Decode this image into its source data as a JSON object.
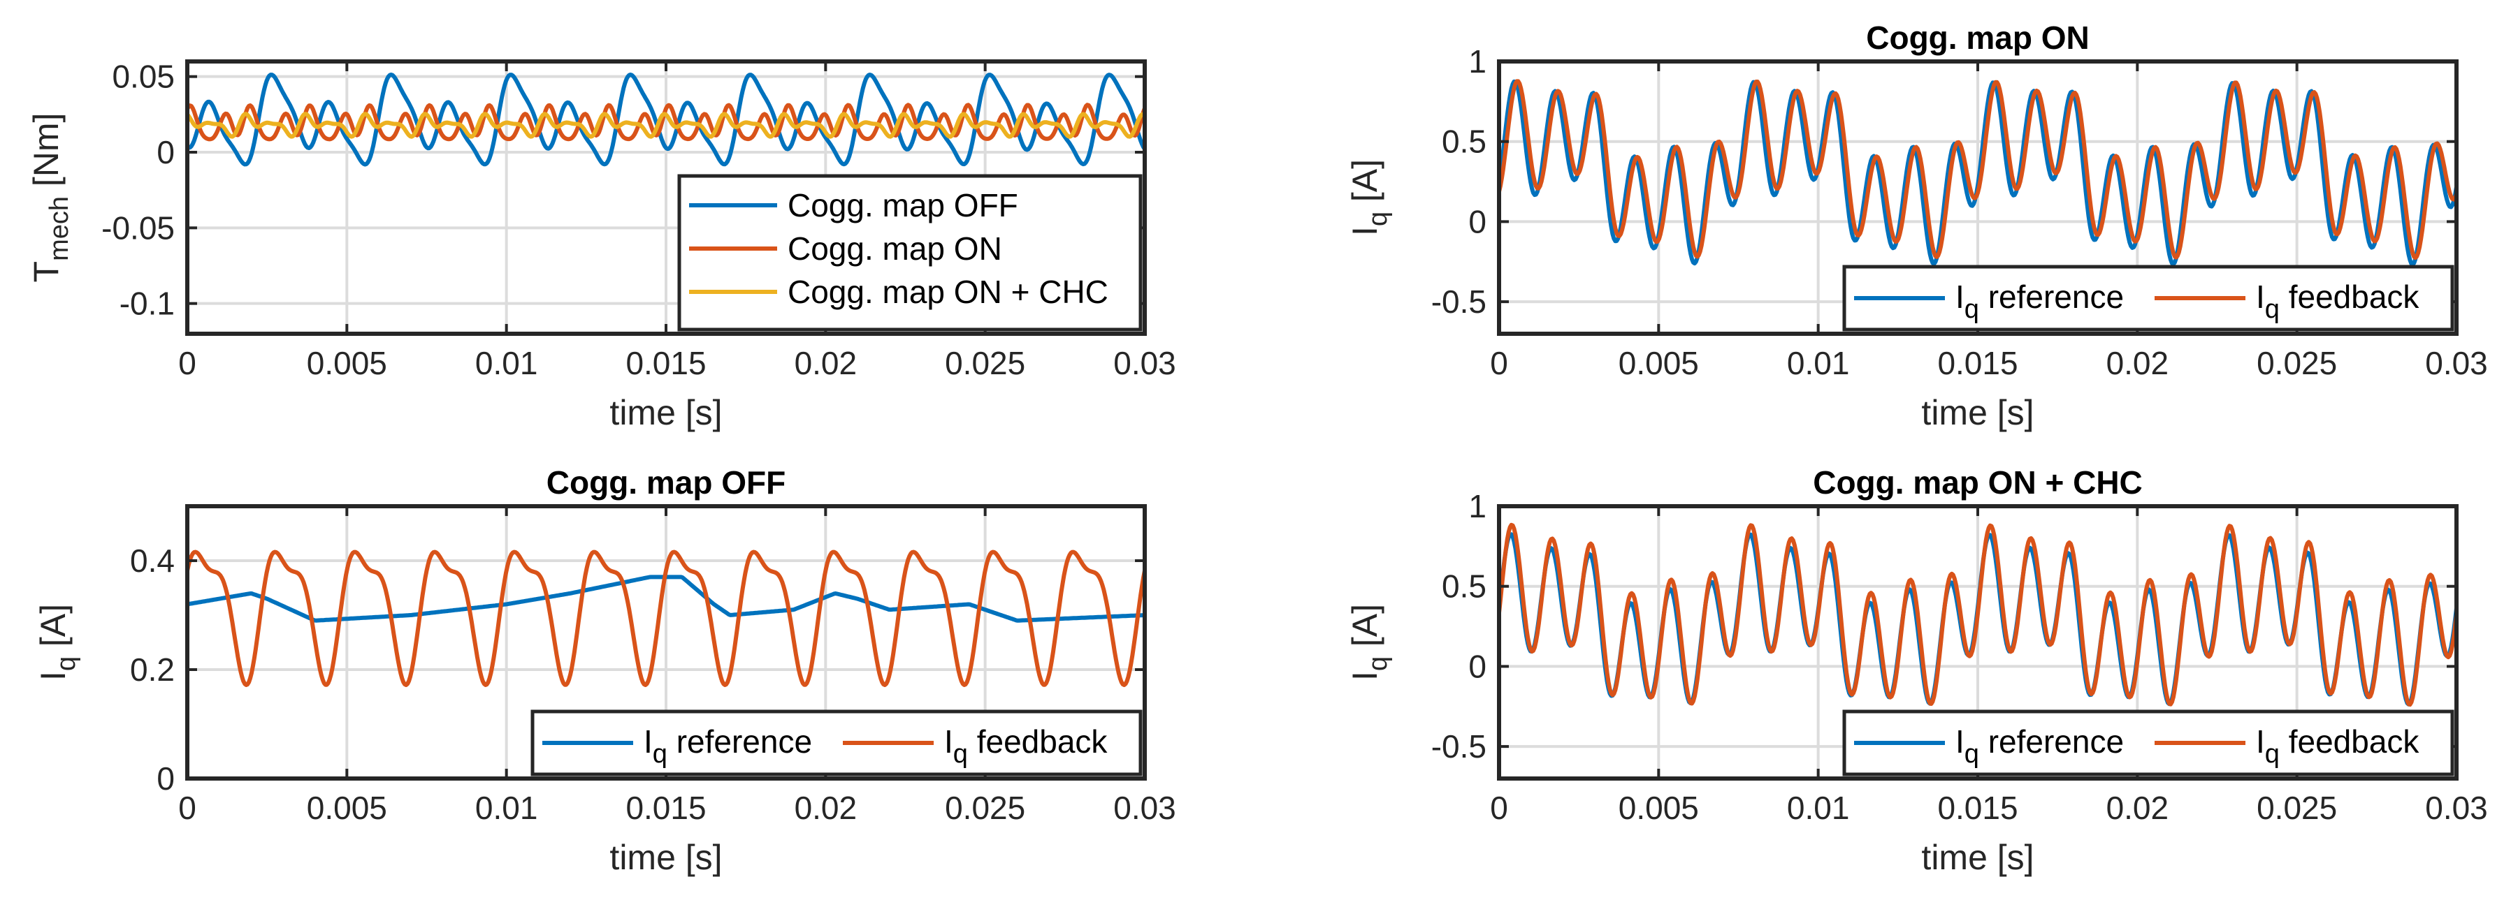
{
  "figure_title": "",
  "colors": {
    "blue": "#0072BD",
    "orange": "#D95319",
    "yellow": "#EDB120"
  },
  "chart_data": [
    {
      "type": "line",
      "id": "tmech",
      "title": "",
      "xlabel": "time [s]",
      "ylabel": {
        "main": "T",
        "sub": "mech",
        "unit": " [Nm]"
      },
      "xlim": [
        0,
        0.03
      ],
      "ylim": [
        -0.12,
        0.06
      ],
      "xticks": [
        0,
        0.005,
        0.01,
        0.015,
        0.02,
        0.025,
        0.03
      ],
      "xtick_labels": [
        "0",
        "0.005",
        "0.01",
        "0.015",
        "0.02",
        "0.025",
        "0.03"
      ],
      "yticks": [
        0.05,
        0,
        -0.05,
        -0.1
      ],
      "ytick_labels": [
        "0.05",
        "0",
        "-0.05",
        "-0.1"
      ],
      "legend": "inside lower-right, vertical",
      "series": [
        {
          "name": "Cogg. map OFF",
          "color": "#0072BD",
          "offset": 0.02,
          "amps": [
            0.02,
            0.013,
            0.005
          ],
          "freqs": [
            533,
            267,
            1067
          ],
          "phases": [
            -1.2,
            2.7,
            -2.4
          ]
        },
        {
          "name": "Cogg. map ON",
          "color": "#D95319",
          "offset": 0.018,
          "amps": [
            0.008,
            0.005,
            0.003
          ],
          "freqs": [
            1067,
            533,
            1600
          ],
          "phases": [
            0.4,
            2.0,
            1.3
          ]
        },
        {
          "name": "Cogg. map ON + CHC",
          "color": "#EDB120",
          "offset": 0.018,
          "amps": [
            0.004,
            0.003,
            0.002
          ],
          "freqs": [
            1067,
            533,
            1600
          ],
          "phases": [
            1.9,
            0.7,
            2.5
          ]
        }
      ]
    },
    {
      "type": "line",
      "id": "iq_off",
      "title": "Cogg. map OFF",
      "xlabel": "time [s]",
      "ylabel": {
        "main": "I",
        "sub": "q",
        "unit": " [A]"
      },
      "xlim": [
        0,
        0.03
      ],
      "ylim": [
        0,
        0.5
      ],
      "xticks": [
        0,
        0.005,
        0.01,
        0.015,
        0.02,
        0.025,
        0.03
      ],
      "xtick_labels": [
        "0",
        "0.005",
        "0.01",
        "0.015",
        "0.02",
        "0.025",
        "0.03"
      ],
      "yticks": [
        0.4,
        0.2,
        0
      ],
      "ytick_labels": [
        "0.4",
        "0.2",
        "0"
      ],
      "legend": "inside lower-right, horizontal",
      "series": [
        {
          "name": "reference",
          "label_main": "I",
          "label_sub": "q",
          "label_rest": " reference",
          "color": "#0072BD",
          "points": [
            [
              0,
              0.32
            ],
            [
              0.002,
              0.34
            ],
            [
              0.0025,
              0.33
            ],
            [
              0.004,
              0.29
            ],
            [
              0.007,
              0.3
            ],
            [
              0.01,
              0.32
            ],
            [
              0.012,
              0.34
            ],
            [
              0.0145,
              0.37
            ],
            [
              0.0155,
              0.37
            ],
            [
              0.0165,
              0.32
            ],
            [
              0.017,
              0.3
            ],
            [
              0.019,
              0.31
            ],
            [
              0.0203,
              0.34
            ],
            [
              0.021,
              0.33
            ],
            [
              0.022,
              0.31
            ],
            [
              0.0245,
              0.32
            ],
            [
              0.026,
              0.29
            ],
            [
              0.03,
              0.3
            ]
          ]
        },
        {
          "name": "feedback",
          "label_main": "I",
          "label_sub": "q",
          "label_rest": " feedback",
          "color": "#D95319",
          "offset": 0.32,
          "amps": [
            0.11,
            0.04
          ],
          "freqs": [
            400,
            800
          ],
          "phases": [
            0.2,
            1.5
          ]
        }
      ]
    },
    {
      "type": "line",
      "id": "iq_on",
      "title": "Cogg. map ON",
      "xlabel": "time [s]",
      "ylabel": {
        "main": "I",
        "sub": "q",
        "unit": " [A]"
      },
      "xlim": [
        0,
        0.03
      ],
      "ylim": [
        -0.7,
        1
      ],
      "xticks": [
        0,
        0.005,
        0.01,
        0.015,
        0.02,
        0.025,
        0.03
      ],
      "xtick_labels": [
        "0",
        "0.005",
        "0.01",
        "0.015",
        "0.02",
        "0.025",
        "0.03"
      ],
      "yticks": [
        1,
        0.5,
        0,
        -0.5
      ],
      "ytick_labels": [
        "1",
        "0.5",
        "0",
        "-0.5"
      ],
      "legend": "inside lower-right, horizontal",
      "series": [
        {
          "name": "reference",
          "label_main": "I",
          "label_sub": "q",
          "label_rest": " reference",
          "color": "#0072BD",
          "offset": 0.32,
          "amps": [
            0.32,
            0.25,
            0.1
          ],
          "freqs": [
            800,
            133,
            400
          ],
          "phases": [
            -0.9,
            0.3,
            1.1
          ]
        },
        {
          "name": "feedback",
          "label_main": "I",
          "label_sub": "q",
          "label_rest": " feedback",
          "color": "#D95319",
          "offset": 0.34,
          "amps": [
            0.3,
            0.25,
            0.1
          ],
          "freqs": [
            800,
            133,
            400
          ],
          "phases": [
            -1.35,
            0.25,
            0.9
          ]
        }
      ]
    },
    {
      "type": "line",
      "id": "iq_on_chc",
      "title": "Cogg. map ON + CHC",
      "xlabel": "time [s]",
      "ylabel": {
        "main": "I",
        "sub": "q",
        "unit": " [A]"
      },
      "xlim": [
        0,
        0.03
      ],
      "ylim": [
        -0.7,
        1
      ],
      "xticks": [
        0,
        0.005,
        0.01,
        0.015,
        0.02,
        0.025,
        0.03
      ],
      "xtick_labels": [
        "0",
        "0.005",
        "0.01",
        "0.015",
        "0.02",
        "0.025",
        "0.03"
      ],
      "yticks": [
        1,
        0.5,
        0,
        -0.5
      ],
      "ytick_labels": [
        "1",
        "0.5",
        "0",
        "-0.5"
      ],
      "legend": "inside lower-right, horizontal",
      "series": [
        {
          "name": "reference",
          "label_main": "I",
          "label_sub": "q",
          "label_rest": " reference",
          "color": "#0072BD",
          "offset": 0.28,
          "amps": [
            0.33,
            0.2,
            0.08
          ],
          "freqs": [
            800,
            133,
            400
          ],
          "phases": [
            -0.3,
            0.6,
            1.4
          ]
        },
        {
          "name": "feedback",
          "label_main": "I",
          "label_sub": "q",
          "label_rest": " feedback",
          "color": "#D95319",
          "offset": 0.31,
          "amps": [
            0.36,
            0.2,
            0.08
          ],
          "freqs": [
            800,
            133,
            400
          ],
          "phases": [
            -0.45,
            0.55,
            1.3
          ]
        }
      ]
    }
  ]
}
